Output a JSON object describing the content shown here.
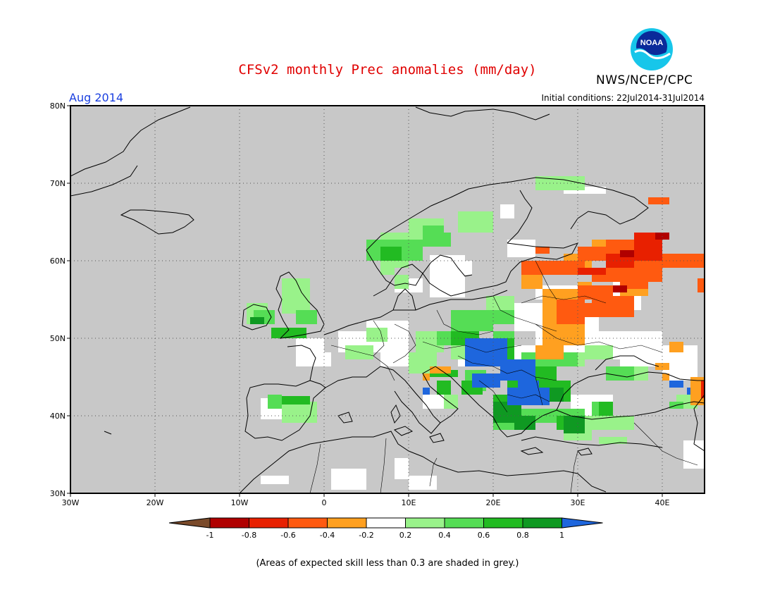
{
  "header": {
    "title": "CFSv2 monthly Prec anomalies (mm/day)",
    "org": "NWS/NCEP/CPC",
    "logo_text": "NOAA"
  },
  "map": {
    "month_label": "Aug 2014",
    "init_conditions": "Initial conditions: 22Jul2014-31Jul2014",
    "lon_range": [
      -30,
      45
    ],
    "lat_range": [
      30,
      80
    ],
    "lat_ticks": [
      "80N",
      "70N",
      "60N",
      "50N",
      "40N",
      "30N"
    ],
    "lon_ticks": [
      "30W",
      "20W",
      "10W",
      "0",
      "10E",
      "20E",
      "30E",
      "40E"
    ],
    "grid": "dotted",
    "background_color": "#c8c8c8",
    "coastline_color": "#000000"
  },
  "colorbar": {
    "colors": [
      "#7a4a2a",
      "#b00000",
      "#e82000",
      "#ff5a10",
      "#ffa020",
      "#ffffff",
      "#99f28a",
      "#55dd55",
      "#22bb22",
      "#0f9922",
      "#1e66dd"
    ],
    "labels": [
      "-1",
      "-0.8",
      "-0.6",
      "-0.4",
      "-0.2",
      "0.2",
      "0.4",
      "0.6",
      "0.8",
      "1"
    ]
  },
  "footnote": "(Areas of expected skill less than 0.3 are shaded in grey.)"
}
